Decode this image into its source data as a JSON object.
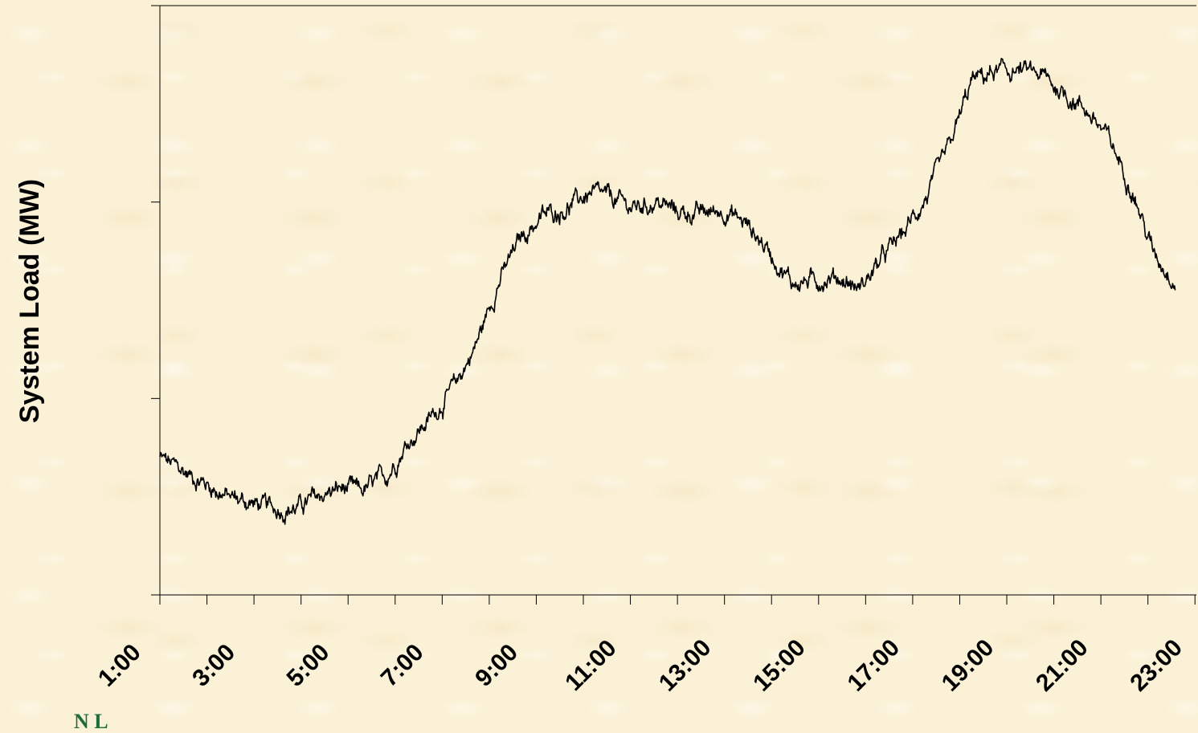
{
  "chart_data": {
    "type": "line",
    "title": "",
    "ylabel": "System Load (MW)",
    "xlabel": "",
    "x_tick_labels": [
      "1:00",
      "3:00",
      "5:00",
      "7:00",
      "9:00",
      "11:00",
      "13:00",
      "15:00",
      "17:00",
      "19:00",
      "21:00",
      "23:00"
    ],
    "xlim": [
      1,
      23
    ],
    "y_ticks_labeled": false,
    "ylim": [
      0,
      3
    ],
    "grid": false,
    "legend": "none",
    "line_color": "#000000",
    "series": [
      {
        "x": [
          1.0,
          1.5,
          2.0,
          2.5,
          3.0,
          3.5,
          4.0,
          4.5,
          5.0,
          5.5,
          6.0,
          6.5,
          7.0,
          7.5,
          8.0,
          8.5,
          9.0,
          9.5,
          10.0,
          10.5,
          11.0,
          11.5,
          12.0,
          12.5,
          13.0,
          13.5,
          14.0,
          14.5,
          15.0,
          15.5,
          16.0,
          16.5,
          17.0,
          17.5,
          18.0,
          18.5,
          19.0,
          19.5,
          20.0,
          20.5,
          21.0,
          21.5,
          22.0,
          22.5,
          23.0,
          23.5
        ],
        "values": [
          0.7,
          0.63,
          0.57,
          0.5,
          0.47,
          0.44,
          0.44,
          0.5,
          0.54,
          0.53,
          0.6,
          0.78,
          0.9,
          1.05,
          1.27,
          1.59,
          1.82,
          1.93,
          1.97,
          2.04,
          2.02,
          1.97,
          2.0,
          1.95,
          1.94,
          1.96,
          1.89,
          1.75,
          1.59,
          1.6,
          1.62,
          1.56,
          1.71,
          1.85,
          2.03,
          2.28,
          2.62,
          2.66,
          2.67,
          2.65,
          2.56,
          2.48,
          2.33,
          2.1,
          1.75,
          1.6
        ]
      }
    ]
  },
  "footer": {
    "text": "N         L"
  }
}
